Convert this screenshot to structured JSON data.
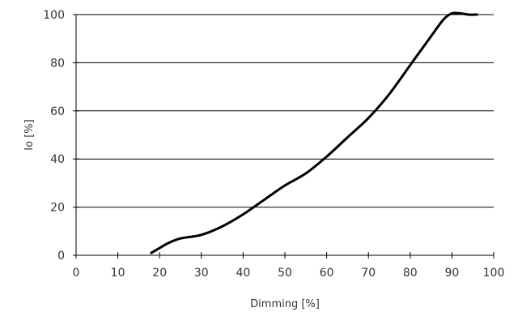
{
  "chart_data": {
    "type": "line",
    "xlabel": "Dimming [%]",
    "ylabel": "Io [%]",
    "xlim": [
      0,
      100
    ],
    "ylim": [
      0,
      100
    ],
    "x_ticks": [
      0,
      10,
      20,
      30,
      40,
      50,
      60,
      70,
      80,
      90,
      100
    ],
    "y_ticks": [
      0,
      20,
      40,
      60,
      80,
      100
    ],
    "grid": "horizontal",
    "series": [
      {
        "color": "#000000",
        "x": [
          18,
          20,
          22,
          25,
          30,
          35,
          40,
          45,
          50,
          55,
          60,
          65,
          70,
          75,
          80,
          85,
          88,
          90,
          92,
          94,
          96
        ],
        "y": [
          1,
          3,
          5,
          7,
          8.5,
          12,
          17,
          23,
          29,
          34,
          41,
          49,
          57,
          67,
          79,
          91,
          98,
          100.5,
          100.5,
          100,
          100
        ]
      }
    ]
  }
}
